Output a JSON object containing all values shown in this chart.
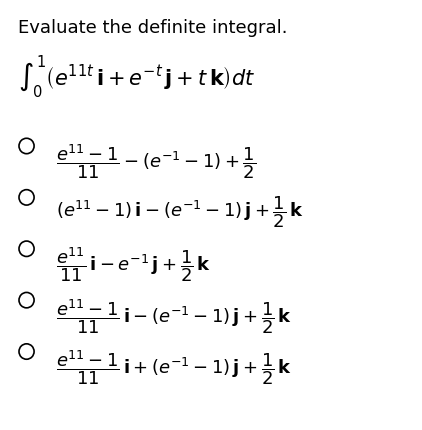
{
  "title": "Evaluate the definite integral.",
  "integral": "$\\int_0^1 \\left( e^{11t}\\, \\mathbf{i} + e^{-t}\\, \\mathbf{j} + t\\, \\mathbf{k} \\right) dt$",
  "options": [
    "$\\dfrac{e^{11} - 1}{11} - (e^{-1} - 1) + \\dfrac{1}{2}$",
    "$(e^{11} - 1)\\, \\mathbf{i} - (e^{-1} - 1)\\, \\mathbf{j} + \\dfrac{1}{2}\\, \\mathbf{k}$",
    "$\\dfrac{e^{11}}{11}\\, \\mathbf{i} - e^{-1}\\, \\mathbf{j} + \\dfrac{1}{2}\\, \\mathbf{k}$",
    "$\\dfrac{e^{11} - 1}{11}\\, \\mathbf{i} - (e^{-1} - 1)\\, \\mathbf{j} + \\dfrac{1}{2}\\, \\mathbf{k}$",
    "$\\dfrac{e^{11} - 1}{11}\\, \\mathbf{i} + (e^{-1} - 1)\\, \\mathbf{j} + \\dfrac{1}{2}\\, \\mathbf{k}$"
  ],
  "correct_index": 3,
  "bg_color": "#ffffff",
  "text_color": "#000000",
  "title_fontsize": 13,
  "integral_fontsize": 15,
  "option_fontsize": 13
}
